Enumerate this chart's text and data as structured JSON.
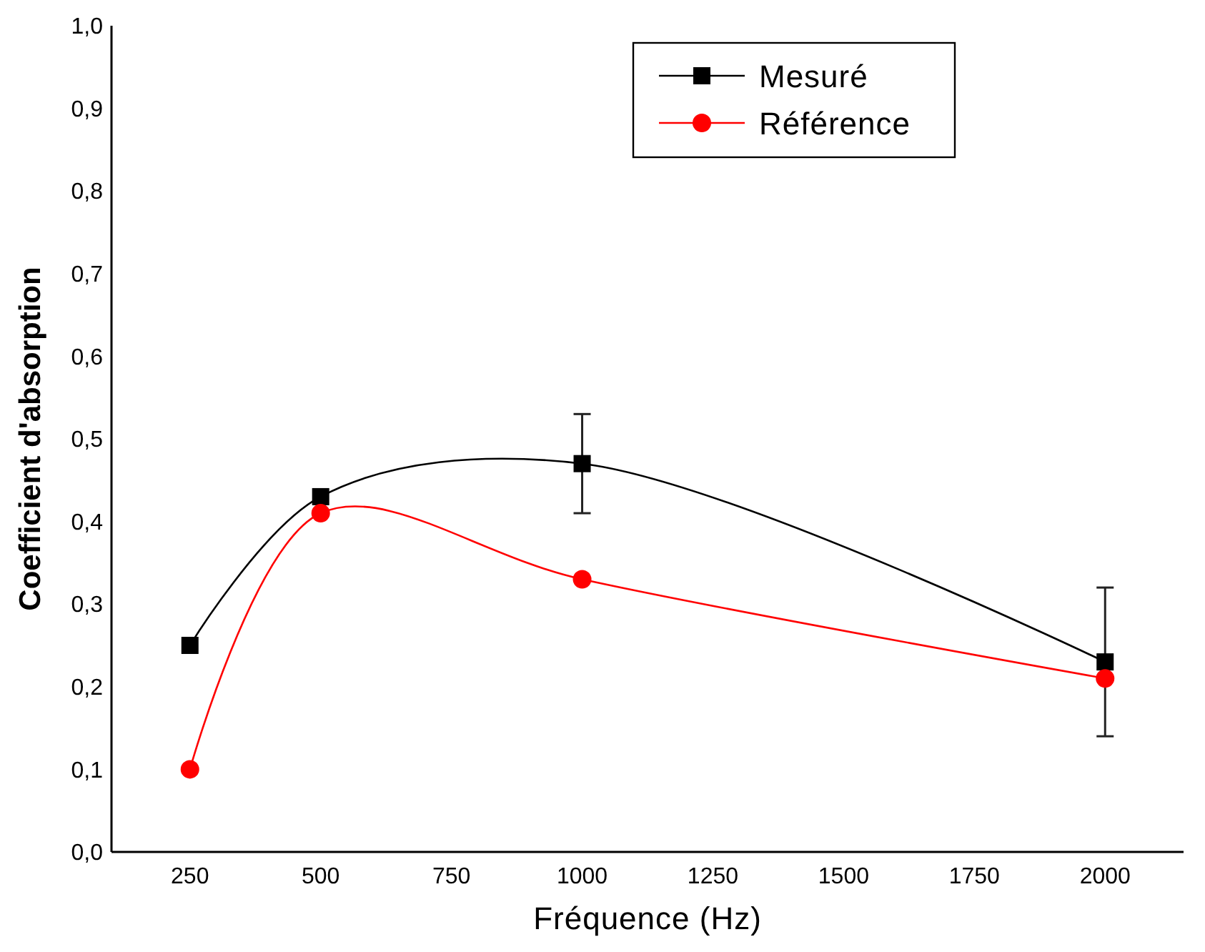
{
  "chart_data": {
    "type": "line",
    "xlabel": "Fréquence (Hz)",
    "ylabel": "Coefficient d'absorption",
    "x": [
      250,
      500,
      1000,
      2000
    ],
    "series": [
      {
        "name": "Mesuré",
        "color": "#000000",
        "marker": "square",
        "values": [
          0.25,
          0.43,
          0.47,
          0.23
        ],
        "errors": [
          null,
          null,
          [
            0.41,
            0.53
          ],
          [
            0.14,
            0.32
          ]
        ]
      },
      {
        "name": "Référence",
        "color": "#ff0000",
        "marker": "circle",
        "values": [
          0.1,
          0.41,
          0.33,
          0.21
        ]
      }
    ],
    "xlim": [
      100,
      2150
    ],
    "xticks": [
      250,
      500,
      750,
      1000,
      1250,
      1500,
      1750,
      2000
    ],
    "ylim": [
      0,
      1
    ],
    "yticks": [
      {
        "value": 0,
        "label": "0,0"
      },
      {
        "value": 0.1,
        "label": "0,1"
      },
      {
        "value": 0.2,
        "label": "0,2"
      },
      {
        "value": 0.3,
        "label": "0,3"
      },
      {
        "value": 0.4,
        "label": "0,4"
      },
      {
        "value": 0.5,
        "label": "0,5"
      },
      {
        "value": 0.6,
        "label": "0,6"
      },
      {
        "value": 0.7,
        "label": "0,7"
      },
      {
        "value": 0.8,
        "label": "0,8"
      },
      {
        "value": 0.9,
        "label": "0,9"
      },
      {
        "value": 1,
        "label": "1,0"
      }
    ],
    "grid": false,
    "legend": "top right"
  }
}
